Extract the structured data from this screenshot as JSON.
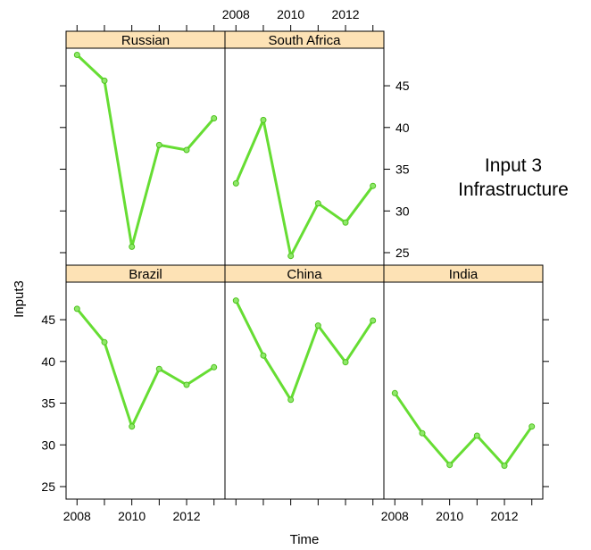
{
  "chart_data": {
    "type": "line",
    "layout": "trellis 3 columns x 2 rows",
    "xlabel": "Time",
    "ylabel": "Input3",
    "annotation": [
      "Input 3",
      "Infrastructure"
    ],
    "xlim": [
      2007.6,
      2013.4
    ],
    "ylim": [
      23.5,
      49.5
    ],
    "xticks": [
      2008,
      2010,
      2012
    ],
    "yticks": [
      25,
      30,
      35,
      40,
      45
    ],
    "grid": false,
    "colors": {
      "line": "#66dd33",
      "point": "#8fe86a",
      "strip": "#fde2b5"
    },
    "series": [
      {
        "name": "Russian",
        "x": [
          2008,
          2009,
          2010,
          2011,
          2012,
          2013
        ],
        "values": [
          48.7,
          45.6,
          25.7,
          37.9,
          37.3,
          41.1
        ]
      },
      {
        "name": "South Africa",
        "x": [
          2008,
          2009,
          2010,
          2011,
          2012,
          2013
        ],
        "values": [
          33.3,
          40.9,
          24.6,
          30.9,
          28.6,
          33.0
        ]
      },
      {
        "name": "Brazil",
        "x": [
          2008,
          2009,
          2010,
          2011,
          2012,
          2013
        ],
        "values": [
          46.3,
          42.3,
          32.2,
          39.1,
          37.2,
          39.3
        ]
      },
      {
        "name": "China",
        "x": [
          2008,
          2009,
          2010,
          2011,
          2012,
          2013
        ],
        "values": [
          47.3,
          40.7,
          35.4,
          44.3,
          39.9,
          44.9
        ]
      },
      {
        "name": "India",
        "x": [
          2008,
          2009,
          2010,
          2011,
          2012,
          2013
        ],
        "values": [
          36.2,
          31.4,
          27.6,
          31.1,
          27.5,
          32.2
        ]
      }
    ]
  }
}
